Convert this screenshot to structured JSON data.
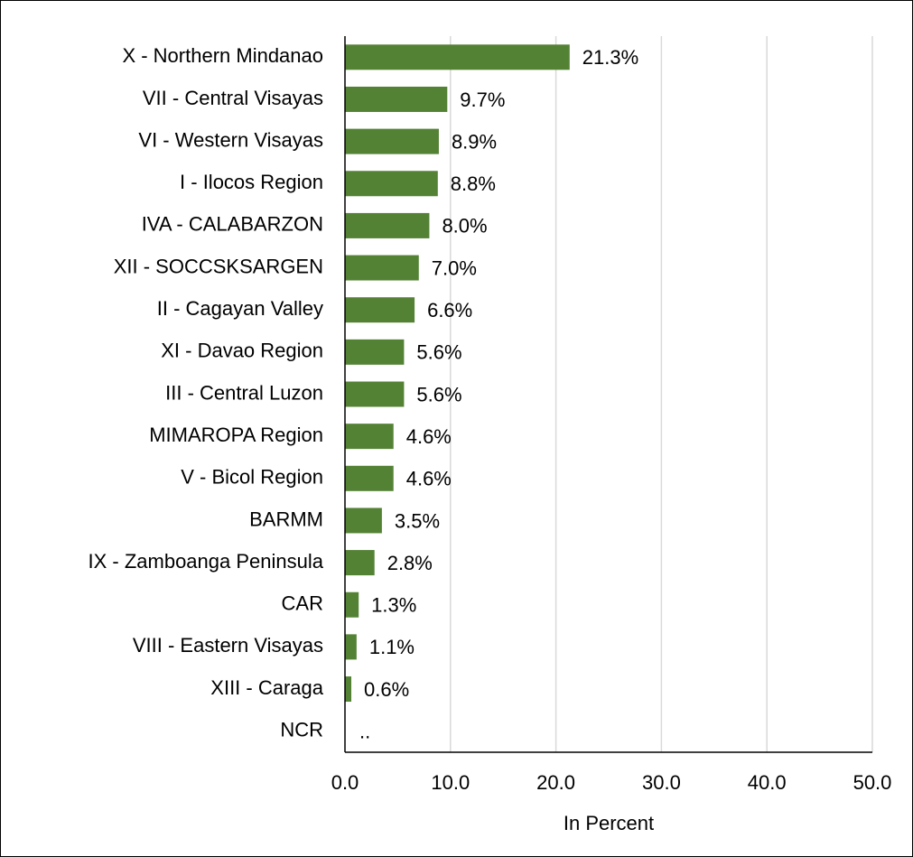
{
  "chart_data": {
    "type": "hbar",
    "categories": [
      "X - Northern Mindanao",
      "VII - Central Visayas",
      "VI - Western Visayas",
      "I - Ilocos Region",
      "IVA - CALABARZON",
      "XII - SOCCSKSARGEN",
      "II - Cagayan Valley",
      "XI - Davao Region",
      "III - Central Luzon",
      "MIMAROPA Region",
      "V - Bicol Region",
      "BARMM",
      "IX - Zamboanga Peninsula",
      "CAR",
      "VIII - Eastern Visayas",
      "XIII - Caraga",
      "NCR"
    ],
    "values": [
      21.3,
      9.7,
      8.9,
      8.8,
      8.0,
      7.0,
      6.6,
      5.6,
      5.6,
      4.6,
      4.6,
      3.5,
      2.8,
      1.3,
      1.1,
      0.6,
      null
    ],
    "value_labels": [
      "21.3%",
      "9.7%",
      "8.9%",
      "8.8%",
      "8.0%",
      "7.0%",
      "6.6%",
      "5.6%",
      "5.6%",
      "4.6%",
      "4.6%",
      "3.5%",
      "2.8%",
      "1.3%",
      "1.1%",
      "0.6%",
      ".."
    ],
    "color": "#548235",
    "xlabel": "In Percent",
    "xlim": [
      0,
      50
    ],
    "xticks": [
      {
        "value": 0,
        "label": "0.0"
      },
      {
        "value": 10,
        "label": "10.0"
      },
      {
        "value": 20,
        "label": "20.0"
      },
      {
        "value": 30,
        "label": "30.0"
      },
      {
        "value": 40,
        "label": "40.0"
      },
      {
        "value": 50,
        "label": "50.0"
      }
    ],
    "grid": true
  }
}
